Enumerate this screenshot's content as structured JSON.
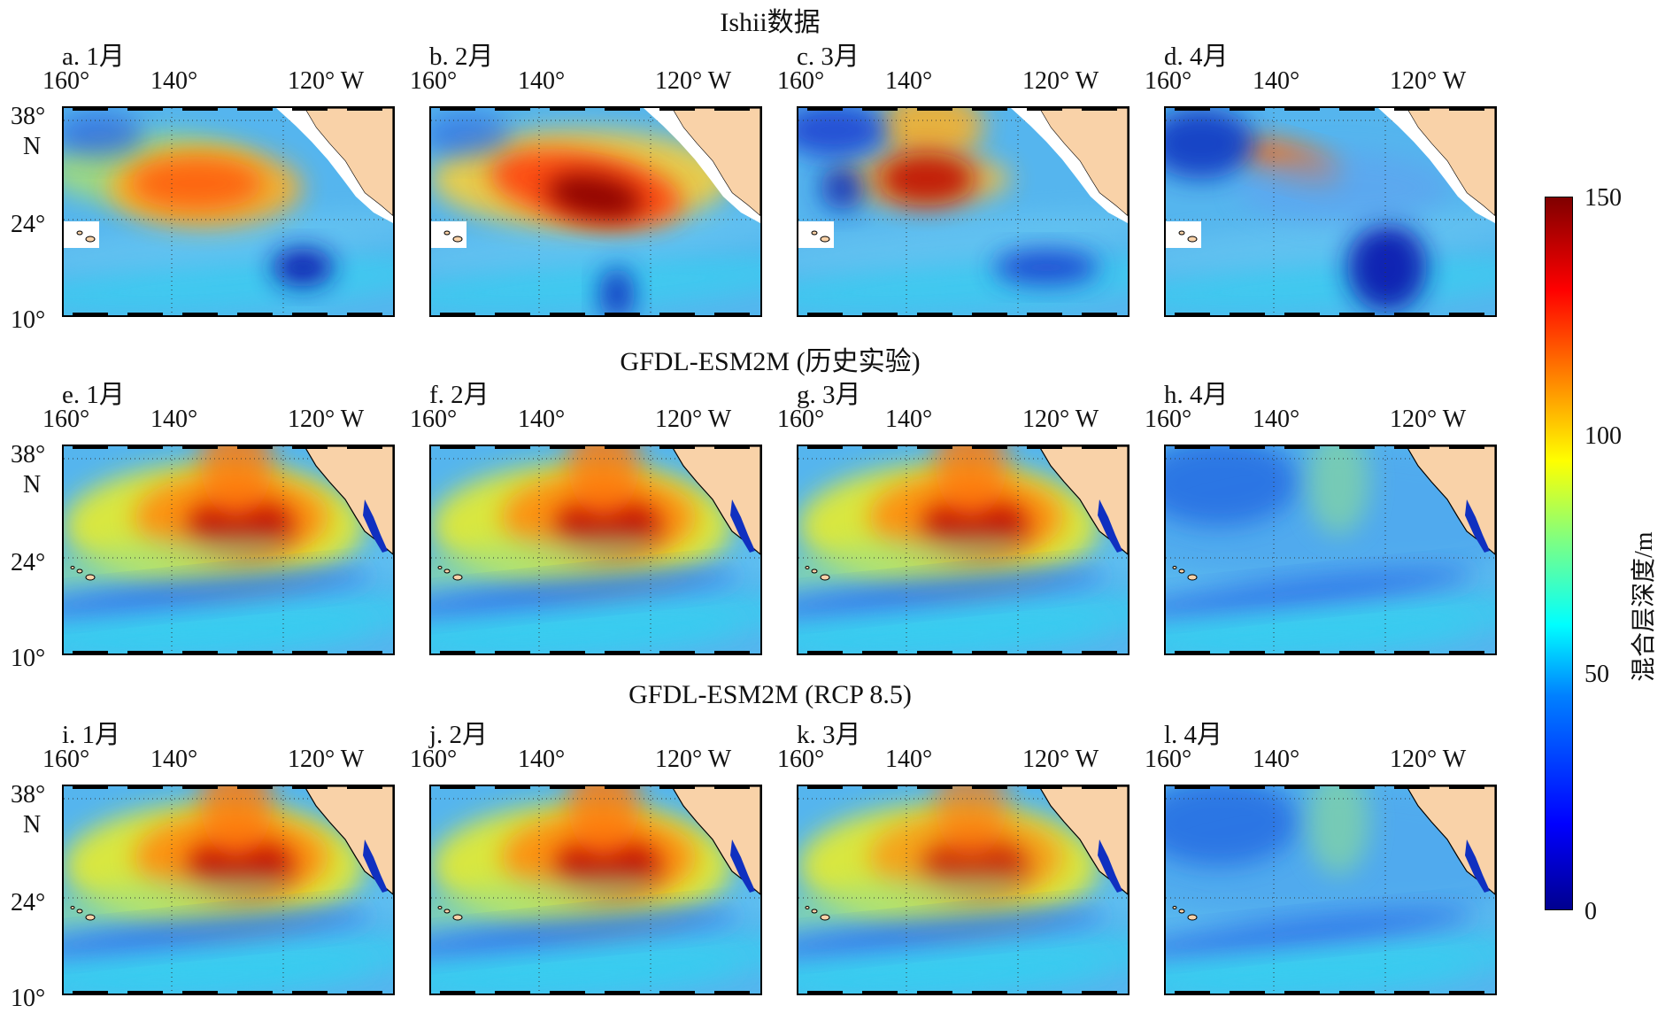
{
  "rows": [
    {
      "title": "Ishii数据",
      "panels": [
        "a. 1月",
        "b. 2月",
        "c. 3月",
        "d. 4月"
      ]
    },
    {
      "title": "GFDL-ESM2M (历史实验)",
      "panels": [
        "e. 1月",
        "f. 2月",
        "g. 3月",
        "h. 4月"
      ]
    },
    {
      "title": "GFDL-ESM2M (RCP 8.5)",
      "panels": [
        "i. 1月",
        "j. 2月",
        "k. 3月",
        "l. 4月"
      ]
    }
  ],
  "axes": {
    "lon_labels": [
      "160°",
      "140°",
      "120° W"
    ],
    "lat_labels": [
      "38°",
      "N",
      "24°",
      "10°"
    ]
  },
  "colorbar": {
    "label": "混合层深度/m",
    "ticks": [
      "150",
      "100",
      "50",
      "0"
    ],
    "range": [
      0,
      150
    ],
    "colormap": "jet"
  },
  "colors": {
    "land": "#f9d2a8",
    "deep_blue": "#1030c0",
    "ocean_base": "#5ab0ea"
  }
}
